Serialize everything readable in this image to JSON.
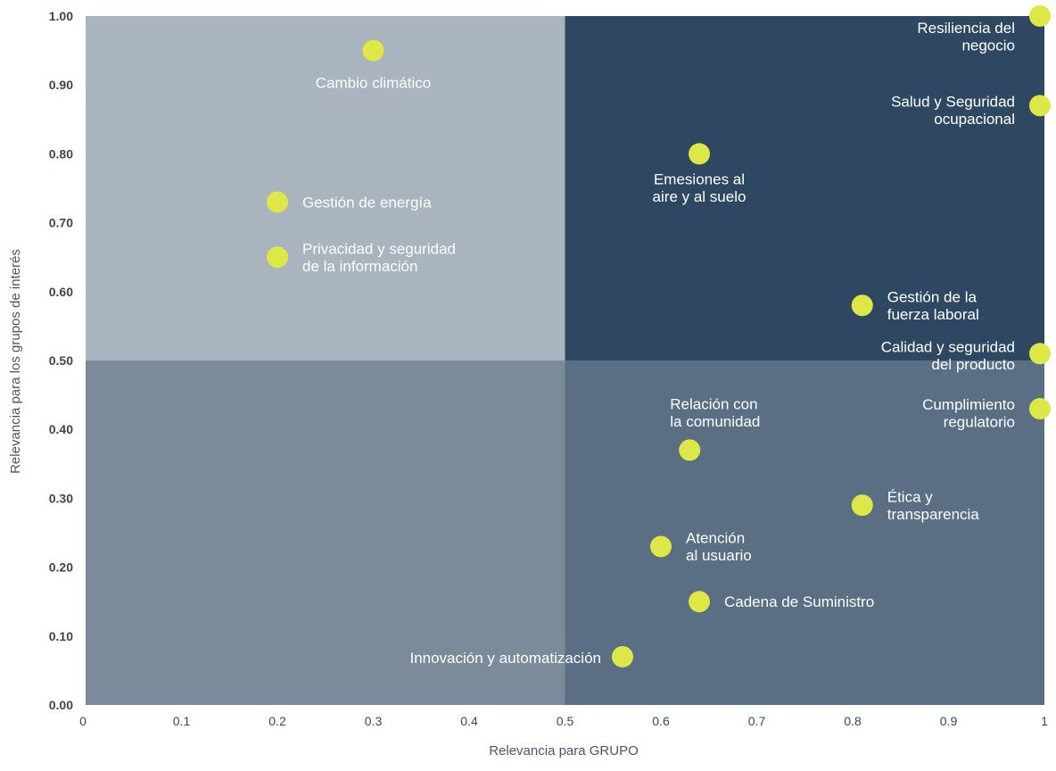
{
  "chart_data": {
    "type": "scatter",
    "xlabel": "Relevancia para GRUPO",
    "ylabel": "Relevancia para los grupos de interés",
    "xlim": [
      0,
      1
    ],
    "ylim": [
      0,
      1
    ],
    "x_ticks": [
      "0",
      "0.1",
      "0.2",
      "0.3",
      "0.4",
      "0.5",
      "0.6",
      "0.7",
      "0.8",
      "0.9",
      "1"
    ],
    "y_ticks": [
      "0.00",
      "0.10",
      "0.20",
      "0.30",
      "0.40",
      "0.50",
      "0.60",
      "0.70",
      "0.80",
      "0.90",
      "1.00"
    ],
    "quadrant_split": {
      "x": 0.5,
      "y": 0.5
    },
    "colors": {
      "quadrant_top_left": "#a9b4bf",
      "quadrant_top_right": "#2e4862",
      "quadrant_bottom_left": "#7b8b9a",
      "quadrant_bottom_right": "#5a6e84",
      "point": "#dde846",
      "label": "#ffffff"
    },
    "points": [
      {
        "x": 1.0,
        "y": 1.0,
        "label": [
          "Resiliencia del",
          "negocio"
        ],
        "align": "left"
      },
      {
        "x": 0.3,
        "y": 0.95,
        "label": [
          "Cambio climático"
        ],
        "align": "below"
      },
      {
        "x": 1.0,
        "y": 0.87,
        "label": [
          "Salud y Seguridad",
          "ocupacional"
        ],
        "align": "left"
      },
      {
        "x": 0.64,
        "y": 0.8,
        "label": [
          "Emesiones al",
          "aire y al suelo"
        ],
        "align": "below"
      },
      {
        "x": 0.2,
        "y": 0.73,
        "label": [
          "Gestión de energía"
        ],
        "align": "right"
      },
      {
        "x": 0.2,
        "y": 0.65,
        "label": [
          "Privacidad y seguridad",
          "de la información"
        ],
        "align": "right"
      },
      {
        "x": 0.81,
        "y": 0.58,
        "label": [
          "Gestión de la",
          "fuerza laboral"
        ],
        "align": "right"
      },
      {
        "x": 1.0,
        "y": 0.51,
        "label": [
          "Calidad y seguridad",
          "del producto"
        ],
        "align": "left"
      },
      {
        "x": 1.0,
        "y": 0.43,
        "label": [
          "Cumplimiento",
          "regulatorio"
        ],
        "align": "left"
      },
      {
        "x": 0.63,
        "y": 0.37,
        "label": [
          "Relación con",
          "la comunidad"
        ],
        "align": "above"
      },
      {
        "x": 0.81,
        "y": 0.29,
        "label": [
          "Ética y",
          "transparencia"
        ],
        "align": "right"
      },
      {
        "x": 0.6,
        "y": 0.23,
        "label": [
          "Atención",
          "al usuario"
        ],
        "align": "right"
      },
      {
        "x": 0.64,
        "y": 0.15,
        "label": [
          "Cadena de Suministro"
        ],
        "align": "right"
      },
      {
        "x": 0.56,
        "y": 0.07,
        "label": [
          "Innovación y automatización"
        ],
        "align": "left"
      }
    ]
  }
}
